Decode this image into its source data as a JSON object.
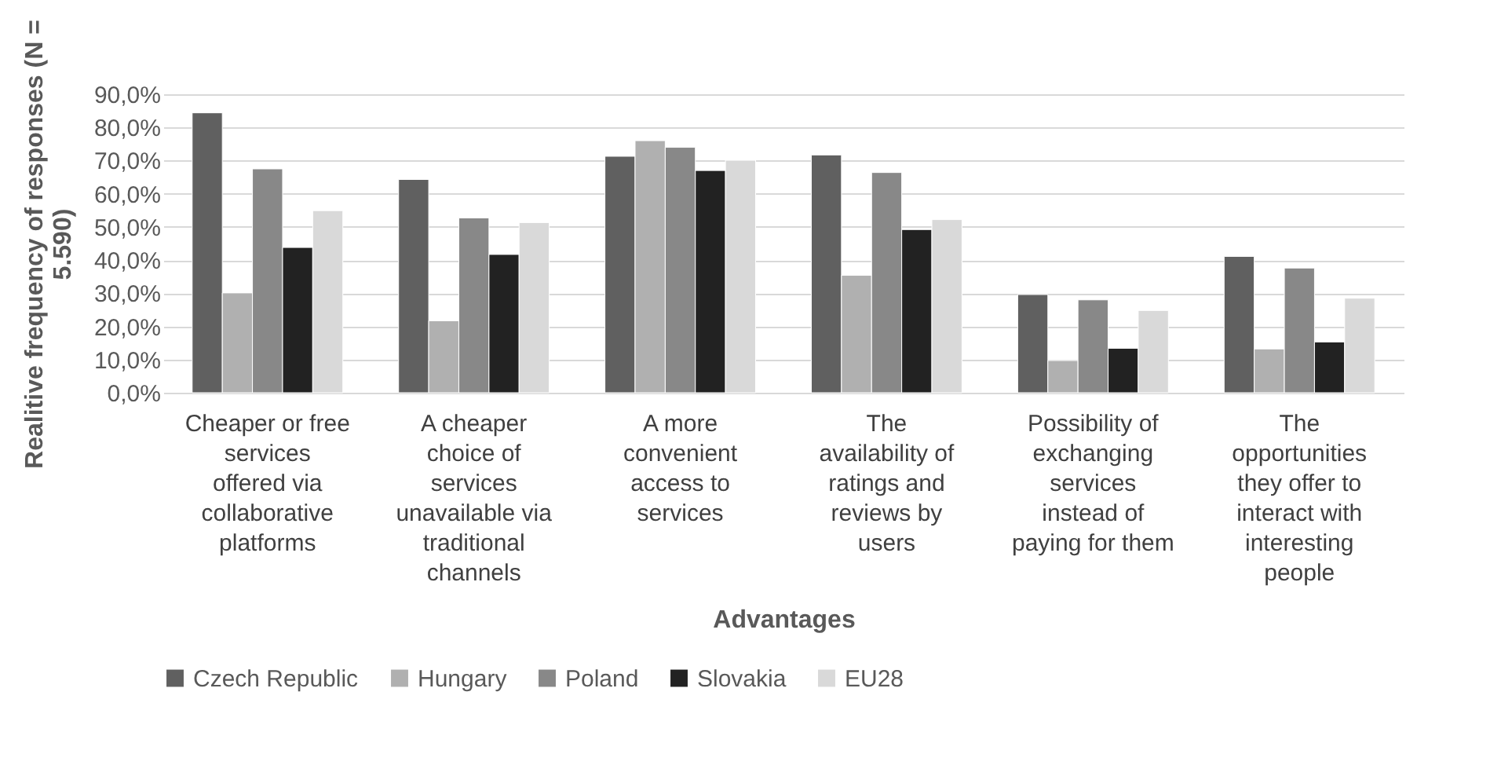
{
  "chart_data": {
    "type": "bar",
    "xlabel": "Advantages",
    "ylabel": "Realitive frequency of  responses (N = 5.590)",
    "categories": [
      "Cheaper or free services offered via collaborative platforms",
      "A cheaper choice of services unavailable via traditional channels",
      "A more convenient access to services",
      "The availability of ratings and reviews by users",
      "Possibility of exchanging services instead of paying for them",
      "The opportunities they offer to interact with interesting people"
    ],
    "series": [
      {
        "name": "Czech Republic",
        "color": "#606060",
        "values": [
          84.4,
          64.3,
          71.3,
          71.7,
          29.6,
          41.1
        ]
      },
      {
        "name": "Hungary",
        "color": "#b0b0b0",
        "values": [
          30.1,
          21.7,
          76.0,
          35.4,
          9.7,
          13.2
        ]
      },
      {
        "name": "Poland",
        "color": "#888888",
        "values": [
          67.5,
          52.7,
          74.0,
          66.4,
          28.0,
          37.6
        ]
      },
      {
        "name": "Slovakia",
        "color": "#222222",
        "values": [
          43.8,
          41.7,
          67.0,
          49.2,
          13.4,
          15.3
        ]
      },
      {
        "name": "EU28",
        "color": "#d9d9d9",
        "values": [
          54.9,
          51.3,
          70.1,
          52.2,
          24.8,
          28.5
        ]
      }
    ],
    "ylim": [
      0,
      90
    ],
    "yticks": [
      {
        "value": 0,
        "label": "0,0%"
      },
      {
        "value": 10,
        "label": "10,0%"
      },
      {
        "value": 20,
        "label": "20,0%"
      },
      {
        "value": 30,
        "label": "30,0%"
      },
      {
        "value": 40,
        "label": "40,0%"
      },
      {
        "value": 50,
        "label": "50,0%"
      },
      {
        "value": 60,
        "label": "60,0%"
      },
      {
        "value": 70,
        "label": "70,0%"
      },
      {
        "value": 80,
        "label": "80,0%"
      },
      {
        "value": 90,
        "label": "90,0%"
      }
    ],
    "grid": "y",
    "legend": "bottom"
  }
}
